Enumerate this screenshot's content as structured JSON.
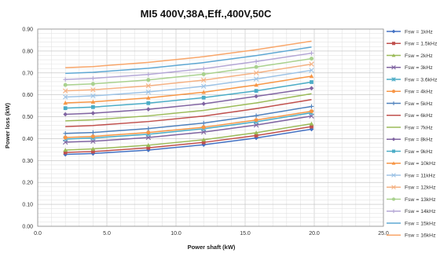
{
  "chart_data": {
    "type": "line",
    "title": "MI5 400V,38A,Eff.,400V,50C",
    "xlabel": "Power shaft (kW)",
    "ylabel": "Power loss (kW)",
    "xlim": [
      0,
      25
    ],
    "ylim": [
      0,
      0.9
    ],
    "x_ticks": [
      "0.0",
      "5.0",
      "10.0",
      "15.0",
      "20.0",
      "25.0"
    ],
    "y_ticks": [
      "0.00",
      "0.10",
      "0.20",
      "0.30",
      "0.40",
      "0.50",
      "0.60",
      "0.70",
      "0.80",
      "0.90"
    ],
    "grid": true,
    "legend_position": "right",
    "x": [
      2,
      4,
      8,
      12,
      15.8,
      19.8
    ],
    "series": [
      {
        "name": "Fsw = 1kHz",
        "color": "#4472C4",
        "marker": "diamond",
        "values": [
          0.328,
          0.332,
          0.348,
          0.372,
          0.403,
          0.443
        ]
      },
      {
        "name": "Fsw = 1.5kHz",
        "color": "#C0504D",
        "marker": "square",
        "values": [
          0.337,
          0.341,
          0.358,
          0.383,
          0.414,
          0.455
        ]
      },
      {
        "name": "Fsw = 2kHz",
        "color": "#9BBB59",
        "marker": "triangle",
        "values": [
          0.348,
          0.353,
          0.37,
          0.395,
          0.427,
          0.468
        ]
      },
      {
        "name": "Fsw = 3kHz",
        "color": "#8064A2",
        "marker": "x",
        "values": [
          0.384,
          0.388,
          0.405,
          0.43,
          0.462,
          0.503
        ]
      },
      {
        "name": "Fsw = 3.6kHz",
        "color": "#4BACC6",
        "marker": "star",
        "values": [
          0.398,
          0.403,
          0.42,
          0.445,
          0.477,
          0.518
        ]
      },
      {
        "name": "Fsw = 4kHz",
        "color": "#F79646",
        "marker": "circle",
        "values": [
          0.405,
          0.41,
          0.428,
          0.452,
          0.485,
          0.525
        ]
      },
      {
        "name": "Fsw = 5kHz",
        "color": "#4F81BD",
        "marker": "plus",
        "values": [
          0.424,
          0.428,
          0.446,
          0.471,
          0.505,
          0.547
        ]
      },
      {
        "name": "Fsw = 6kHz",
        "color": "#C0504D",
        "marker": "none",
        "values": [
          0.455,
          0.46,
          0.478,
          0.503,
          0.537,
          0.578
        ]
      },
      {
        "name": "Fsw = 7kHz",
        "color": "#9BBB59",
        "marker": "none",
        "values": [
          0.481,
          0.486,
          0.504,
          0.529,
          0.563,
          0.605
        ]
      },
      {
        "name": "Fsw = 8kHz",
        "color": "#8064A2",
        "marker": "diamond",
        "values": [
          0.511,
          0.516,
          0.534,
          0.559,
          0.593,
          0.63
        ]
      },
      {
        "name": "Fsw = 9kHz",
        "color": "#4BACC6",
        "marker": "square",
        "values": [
          0.539,
          0.544,
          0.562,
          0.587,
          0.618,
          0.658
        ]
      },
      {
        "name": "Fsw = 10kHz",
        "color": "#F79646",
        "marker": "triangle",
        "values": [
          0.563,
          0.568,
          0.586,
          0.612,
          0.645,
          0.685
        ]
      },
      {
        "name": "Fsw = 11kHz",
        "color": "#9DC3E6",
        "marker": "x",
        "values": [
          0.59,
          0.595,
          0.613,
          0.639,
          0.672,
          0.712
        ]
      },
      {
        "name": "Fsw = 12kHz",
        "color": "#F4B183",
        "marker": "x",
        "values": [
          0.618,
          0.623,
          0.641,
          0.667,
          0.7,
          0.74
        ]
      },
      {
        "name": "Fsw = 13kHz",
        "color": "#A9D18E",
        "marker": "circle",
        "values": [
          0.645,
          0.65,
          0.668,
          0.694,
          0.727,
          0.765
        ]
      },
      {
        "name": "Fsw = 14kHz",
        "color": "#B4A7D6",
        "marker": "plus",
        "values": [
          0.67,
          0.675,
          0.693,
          0.719,
          0.752,
          0.79
        ]
      },
      {
        "name": "Fsw = 15kHz",
        "color": "#5FA8D3",
        "marker": "none",
        "values": [
          0.698,
          0.703,
          0.721,
          0.747,
          0.779,
          0.818
        ]
      },
      {
        "name": "Fsw = 16kHz",
        "color": "#F8A66A",
        "marker": "none",
        "values": [
          0.724,
          0.729,
          0.748,
          0.774,
          0.806,
          0.845
        ]
      }
    ]
  }
}
